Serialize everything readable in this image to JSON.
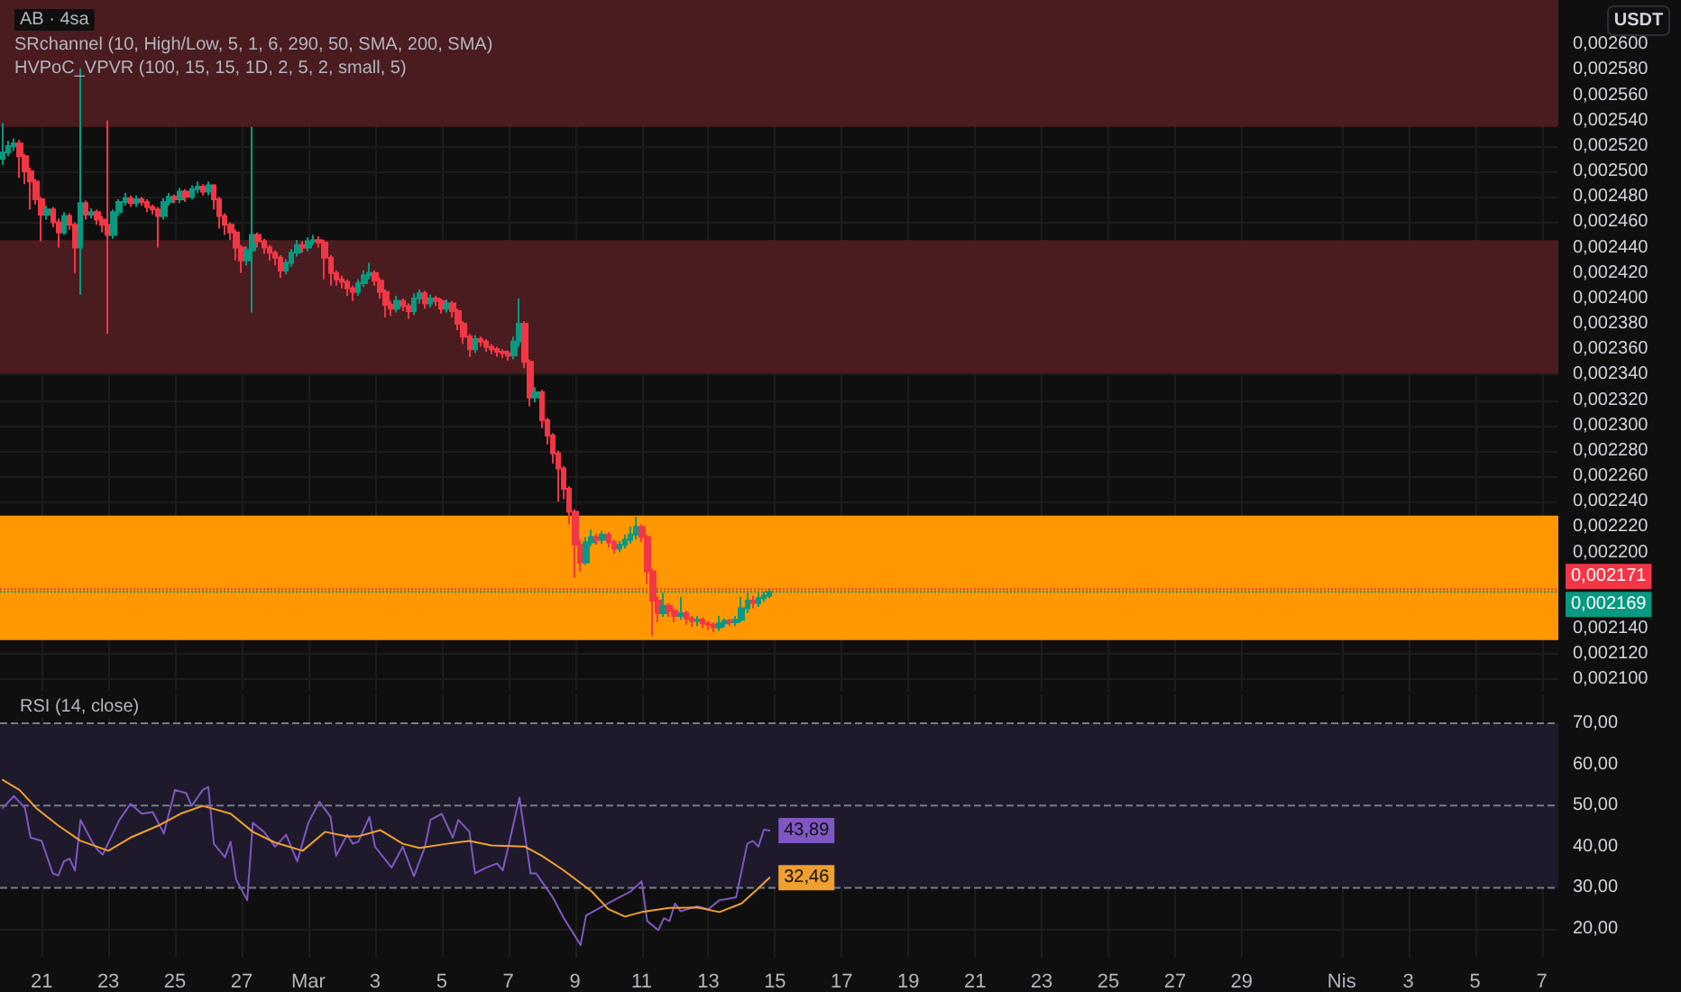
{
  "chart_data": [
    {
      "type": "candlestick",
      "title": "AB · 4sa",
      "ylabel": "USDT",
      "annotations": [
        "SRchannel (10, High/Low, 5, 1, 6, 290, 50, SMA, 200, SMA)",
        "HVPoC_VPVR (100, 15, 15, 1D, 2, 5, 2, small, 5)"
      ],
      "x": [
        "--02-19T20:00",
        "--02-20T00:00",
        "--02-20T04:00",
        "--02-20T08:00",
        "--02-20T12:00",
        "--02-20T16:00",
        "--02-20T20:00",
        "--02-21T00:00",
        "--02-21T04:00",
        "--02-21T08:00",
        "--02-21T12:00",
        "--02-21T16:00",
        "--02-21T20:00",
        "--02-22T00:00",
        "--02-22T04:00",
        "--02-22T08:00",
        "--02-22T12:00",
        "--02-22T16:00",
        "--02-22T20:00",
        "--02-23T00:00",
        "--02-23T04:00",
        "--02-23T08:00",
        "--02-23T12:00",
        "--02-23T16:00",
        "--02-23T20:00",
        "--02-24T00:00",
        "--02-24T04:00",
        "--02-24T08:00",
        "--02-24T12:00",
        "--02-24T16:00",
        "--02-24T20:00",
        "--02-25T00:00",
        "--02-25T04:00",
        "--02-25T08:00",
        "--02-25T12:00",
        "--02-25T16:00",
        "--02-25T20:00",
        "--02-26T00:00",
        "--02-26T04:00",
        "--02-26T08:00",
        "--02-26T12:00",
        "--02-26T16:00",
        "--02-26T20:00",
        "--02-27T00:00",
        "--02-27T04:00",
        "--02-27T08:00",
        "--02-27T12:00",
        "--02-27T16:00",
        "--02-27T20:00",
        "--02-28T00:00",
        "--02-28T04:00",
        "--02-28T08:00",
        "--02-28T12:00",
        "--02-28T16:00",
        "--02-28T20:00",
        "--03-01T00:00",
        "--03-01T04:00",
        "--03-01T08:00",
        "--03-01T12:00",
        "--03-01T16:00",
        "--03-01T20:00",
        "--03-02T00:00",
        "--03-02T04:00",
        "--03-02T08:00",
        "--03-02T12:00",
        "--03-02T16:00",
        "--03-02T20:00",
        "--03-03T00:00",
        "--03-03T04:00",
        "--03-03T08:00",
        "--03-03T12:00",
        "--03-03T16:00",
        "--03-03T20:00",
        "--03-04T00:00",
        "--03-04T04:00",
        "--03-04T08:00",
        "--03-04T12:00",
        "--03-04T16:00",
        "--03-04T20:00",
        "--03-05T00:00",
        "--03-05T04:00",
        "--03-05T08:00",
        "--03-05T12:00",
        "--03-05T16:00",
        "--03-05T20:00",
        "--03-06T00:00",
        "--03-06T04:00",
        "--03-06T08:00",
        "--03-06T12:00",
        "--03-06T16:00",
        "--03-06T20:00",
        "--03-07T00:00",
        "--03-07T04:00",
        "--03-07T08:00",
        "--03-07T12:00",
        "--03-07T16:00",
        "--03-07T20:00",
        "--03-08T00:00",
        "--03-08T04:00",
        "--03-08T08:00",
        "--03-08T12:00",
        "--03-08T16:00",
        "--03-08T20:00",
        "--03-09T00:00",
        "--03-09T04:00",
        "--03-09T08:00",
        "--03-09T12:00",
        "--03-09T16:00",
        "--03-09T20:00",
        "--03-10T00:00",
        "--03-10T04:00",
        "--03-10T08:00",
        "--03-10T12:00",
        "--03-10T16:00",
        "--03-10T20:00",
        "--03-11T00:00",
        "--03-11T04:00",
        "--03-11T08:00",
        "--03-11T12:00",
        "--03-11T16:00",
        "--03-11T20:00",
        "--03-12T00:00",
        "--03-12T04:00",
        "--03-12T08:00",
        "--03-12T12:00",
        "--03-12T16:00",
        "--03-12T20:00",
        "--03-13T00:00",
        "--03-13T04:00",
        "--03-13T08:00",
        "--03-13T12:00",
        "--03-13T16:00",
        "--03-13T20:00",
        "--03-14T00:00",
        "--03-14T04:00",
        "--03-14T08:00",
        "--03-14T12:00",
        "--03-14T16:00",
        "--03-14T20:00"
      ],
      "ohlc": [
        [
          0.00251,
          0.002538,
          0.002505,
          0.002515
        ],
        [
          0.002515,
          0.002524,
          0.002512,
          0.00252
        ],
        [
          0.00252,
          0.002526,
          0.002516,
          0.002522
        ],
        [
          0.002522,
          0.002525,
          0.002495,
          0.002512
        ],
        [
          0.002512,
          0.002514,
          0.00249,
          0.0025
        ],
        [
          0.0025,
          0.002503,
          0.00247,
          0.002492
        ],
        [
          0.002492,
          0.002494,
          0.002474,
          0.002478
        ],
        [
          0.002478,
          0.00248,
          0.002445,
          0.002466
        ],
        [
          0.002466,
          0.002473,
          0.002462,
          0.00247
        ],
        [
          0.00247,
          0.002472,
          0.002456,
          0.00246
        ],
        [
          0.00246,
          0.002463,
          0.00244,
          0.002452
        ],
        [
          0.002452,
          0.002468,
          0.00245,
          0.002465
        ],
        [
          0.002465,
          0.002467,
          0.002454,
          0.002458
        ],
        [
          0.002458,
          0.00246,
          0.00242,
          0.00244
        ],
        [
          0.00244,
          0.002581,
          0.002403,
          0.002475
        ],
        [
          0.002475,
          0.002477,
          0.002462,
          0.002466
        ],
        [
          0.002466,
          0.002471,
          0.002463,
          0.002468
        ],
        [
          0.002468,
          0.00247,
          0.002458,
          0.002462
        ],
        [
          0.002462,
          0.002465,
          0.002452,
          0.002458
        ],
        [
          0.002458,
          0.00254,
          0.002372,
          0.00245
        ],
        [
          0.00245,
          0.00247,
          0.002447,
          0.002468
        ],
        [
          0.002468,
          0.002478,
          0.002465,
          0.002476
        ],
        [
          0.002476,
          0.002483,
          0.002473,
          0.002479
        ],
        [
          0.002479,
          0.002481,
          0.002472,
          0.002475
        ],
        [
          0.002475,
          0.002481,
          0.002472,
          0.002478
        ],
        [
          0.002478,
          0.00248,
          0.002473,
          0.002476
        ],
        [
          0.002476,
          0.002478,
          0.002468,
          0.002472
        ],
        [
          0.002472,
          0.002474,
          0.002466,
          0.00247
        ],
        [
          0.00247,
          0.002472,
          0.00244,
          0.002465
        ],
        [
          0.002465,
          0.002479,
          0.002462,
          0.002476
        ],
        [
          0.002476,
          0.002483,
          0.002473,
          0.00248
        ],
        [
          0.00248,
          0.002482,
          0.002475,
          0.002478
        ],
        [
          0.002478,
          0.002487,
          0.002475,
          0.002484
        ],
        [
          0.002484,
          0.002486,
          0.002476,
          0.00248
        ],
        [
          0.00248,
          0.002489,
          0.002478,
          0.002486
        ],
        [
          0.002486,
          0.002492,
          0.002483,
          0.002488
        ],
        [
          0.002488,
          0.00249,
          0.002481,
          0.002484
        ],
        [
          0.002484,
          0.002492,
          0.002481,
          0.002489
        ],
        [
          0.002489,
          0.00249,
          0.00247,
          0.002478
        ],
        [
          0.002478,
          0.00248,
          0.002455,
          0.002465
        ],
        [
          0.002465,
          0.002467,
          0.00245,
          0.002458
        ],
        [
          0.002458,
          0.00246,
          0.002446,
          0.002452
        ],
        [
          0.002452,
          0.002454,
          0.00243,
          0.00244
        ],
        [
          0.00244,
          0.002442,
          0.00242,
          0.00243
        ],
        [
          0.00243,
          0.002441,
          0.002426,
          0.002438
        ],
        [
          0.002438,
          0.002535,
          0.002389,
          0.00245
        ],
        [
          0.00245,
          0.002452,
          0.00244,
          0.002445
        ],
        [
          0.002445,
          0.002447,
          0.002435,
          0.00244
        ],
        [
          0.00244,
          0.002442,
          0.00243,
          0.002436
        ],
        [
          0.002436,
          0.002438,
          0.002426,
          0.002432
        ],
        [
          0.002432,
          0.002434,
          0.002416,
          0.002422
        ],
        [
          0.002422,
          0.002431,
          0.002419,
          0.002428
        ],
        [
          0.002428,
          0.002439,
          0.002425,
          0.002436
        ],
        [
          0.002436,
          0.002446,
          0.002433,
          0.002442
        ],
        [
          0.002442,
          0.002445,
          0.002436,
          0.00244
        ],
        [
          0.00244,
          0.002448,
          0.002437,
          0.002445
        ],
        [
          0.002445,
          0.00245,
          0.002442,
          0.002446
        ],
        [
          0.002446,
          0.002449,
          0.00244,
          0.002444
        ],
        [
          0.002444,
          0.002446,
          0.002415,
          0.002432
        ],
        [
          0.002432,
          0.002434,
          0.00241,
          0.00242
        ],
        [
          0.00242,
          0.002422,
          0.00241,
          0.002415
        ],
        [
          0.002415,
          0.002418,
          0.002408,
          0.002413
        ],
        [
          0.002413,
          0.002415,
          0.002402,
          0.002408
        ],
        [
          0.002408,
          0.00241,
          0.002398,
          0.002405
        ],
        [
          0.002405,
          0.002415,
          0.002402,
          0.002412
        ],
        [
          0.002412,
          0.002422,
          0.002409,
          0.002418
        ],
        [
          0.002418,
          0.002428,
          0.002415,
          0.00242
        ],
        [
          0.00242,
          0.002422,
          0.00241,
          0.002414
        ],
        [
          0.002414,
          0.002416,
          0.0024,
          0.002405
        ],
        [
          0.002405,
          0.002407,
          0.002385,
          0.002395
        ],
        [
          0.002395,
          0.002398,
          0.002386,
          0.002392
        ],
        [
          0.002392,
          0.002402,
          0.002389,
          0.002398
        ],
        [
          0.002398,
          0.0024,
          0.00239,
          0.002394
        ],
        [
          0.002394,
          0.002396,
          0.002384,
          0.00239
        ],
        [
          0.00239,
          0.002404,
          0.002387,
          0.0024
        ],
        [
          0.0024,
          0.002407,
          0.002396,
          0.002404
        ],
        [
          0.002404,
          0.002406,
          0.002392,
          0.002396
        ],
        [
          0.002396,
          0.002403,
          0.002393,
          0.0024
        ],
        [
          0.0024,
          0.002402,
          0.002394,
          0.002398
        ],
        [
          0.002398,
          0.0024,
          0.002388,
          0.002392
        ],
        [
          0.002392,
          0.002399,
          0.002389,
          0.002396
        ],
        [
          0.002396,
          0.002398,
          0.002385,
          0.00239
        ],
        [
          0.00239,
          0.002392,
          0.002375,
          0.00238
        ],
        [
          0.00238,
          0.002382,
          0.002364,
          0.00237
        ],
        [
          0.00237,
          0.002372,
          0.002354,
          0.00236
        ],
        [
          0.00236,
          0.002371,
          0.002357,
          0.002368
        ],
        [
          0.002368,
          0.00237,
          0.002362,
          0.002366
        ],
        [
          0.002366,
          0.002368,
          0.002358,
          0.002362
        ],
        [
          0.002362,
          0.002364,
          0.002356,
          0.00236
        ],
        [
          0.00236,
          0.002362,
          0.002354,
          0.002358
        ],
        [
          0.002358,
          0.00236,
          0.002353,
          0.002357
        ],
        [
          0.002357,
          0.002359,
          0.002351,
          0.002355
        ],
        [
          0.002355,
          0.00237,
          0.002352,
          0.002366
        ],
        [
          0.002366,
          0.0024,
          0.002362,
          0.00238
        ],
        [
          0.00238,
          0.002382,
          0.002345,
          0.00235
        ],
        [
          0.00235,
          0.002352,
          0.002315,
          0.002322
        ],
        [
          0.002322,
          0.00233,
          0.002318,
          0.002326
        ],
        [
          0.002326,
          0.002328,
          0.002298,
          0.002304
        ],
        [
          0.002304,
          0.002306,
          0.002285,
          0.002292
        ],
        [
          0.002292,
          0.002294,
          0.00227,
          0.002278
        ],
        [
          0.002278,
          0.00228,
          0.00224,
          0.002266
        ],
        [
          0.002266,
          0.002268,
          0.002242,
          0.00225
        ],
        [
          0.00225,
          0.002252,
          0.002222,
          0.002232
        ],
        [
          0.002232,
          0.002234,
          0.00218,
          0.002206
        ],
        [
          0.002206,
          0.00221,
          0.002185,
          0.002192
        ],
        [
          0.002192,
          0.002212,
          0.00219,
          0.002208
        ],
        [
          0.002208,
          0.002218,
          0.002205,
          0.002212
        ],
        [
          0.002212,
          0.002215,
          0.002206,
          0.00221
        ],
        [
          0.00221,
          0.002217,
          0.002207,
          0.002214
        ],
        [
          0.002214,
          0.002216,
          0.002204,
          0.002208
        ],
        [
          0.002208,
          0.00221,
          0.002199,
          0.002203
        ],
        [
          0.002203,
          0.002209,
          0.0022,
          0.002206
        ],
        [
          0.002206,
          0.002214,
          0.002203,
          0.00221
        ],
        [
          0.00221,
          0.00222,
          0.002207,
          0.002214
        ],
        [
          0.002214,
          0.002228,
          0.00221,
          0.00222
        ],
        [
          0.00222,
          0.002222,
          0.002208,
          0.002212
        ],
        [
          0.002212,
          0.002214,
          0.002175,
          0.002185
        ],
        [
          0.002185,
          0.002187,
          0.002134,
          0.002162
        ],
        [
          0.002162,
          0.002165,
          0.002145,
          0.002152
        ],
        [
          0.002152,
          0.002168,
          0.002149,
          0.002158
        ],
        [
          0.002158,
          0.00216,
          0.002149,
          0.002154
        ],
        [
          0.002154,
          0.002156,
          0.002145,
          0.00215
        ],
        [
          0.00215,
          0.002165,
          0.002147,
          0.002152
        ],
        [
          0.002152,
          0.002154,
          0.002143,
          0.002148
        ],
        [
          0.002148,
          0.00215,
          0.002141,
          0.002146
        ],
        [
          0.002146,
          0.00215,
          0.002142,
          0.002147
        ],
        [
          0.002147,
          0.002149,
          0.00214,
          0.002144
        ],
        [
          0.002144,
          0.002146,
          0.002139,
          0.002143
        ],
        [
          0.002143,
          0.002145,
          0.002137,
          0.002141
        ],
        [
          0.002141,
          0.00215,
          0.002138,
          0.002144
        ],
        [
          0.002144,
          0.002148,
          0.002141,
          0.002146
        ],
        [
          0.002146,
          0.002148,
          0.002142,
          0.002145
        ],
        [
          0.002145,
          0.00215,
          0.002142,
          0.002147
        ],
        [
          0.002147,
          0.002165,
          0.002145,
          0.002156
        ],
        [
          0.002156,
          0.002168,
          0.002152,
          0.002162
        ],
        [
          0.002162,
          0.002166,
          0.002156,
          0.00216
        ],
        [
          0.00216,
          0.002168,
          0.002157,
          0.002164
        ],
        [
          0.002164,
          0.002169,
          0.002161,
          0.002166
        ],
        [
          0.002166,
          0.002171,
          0.002164,
          0.002169
        ]
      ],
      "xlim": [
        "--02-19T18:00",
        "--04-07T12:00"
      ],
      "xticks": [
        {
          "value": "--02-21",
          "label": null
        },
        {
          "value": "--02-23",
          "label": null
        },
        {
          "value": "--02-25",
          "label": null
        },
        {
          "value": "--02-27",
          "label": null
        },
        {
          "value": "--03-01",
          "label": null
        },
        {
          "value": "--03-03",
          "label": null
        },
        {
          "value": "--03-05",
          "label": null
        },
        {
          "value": "--03-07",
          "label": null
        },
        {
          "value": "--03-09",
          "label": null
        },
        {
          "value": "--03-11",
          "label": null
        },
        {
          "value": "--03-13",
          "label": null
        },
        {
          "value": "--03-15",
          "label": null
        },
        {
          "value": "--03-17",
          "label": null
        },
        {
          "value": "--03-19",
          "label": null
        },
        {
          "value": "--03-21",
          "label": null
        },
        {
          "value": "--03-23",
          "label": null
        },
        {
          "value": "--03-25",
          "label": null
        },
        {
          "value": "--03-27",
          "label": null
        },
        {
          "value": "--03-29",
          "label": null
        },
        {
          "value": "--04-01",
          "label": null
        },
        {
          "value": "--04-03",
          "label": null
        },
        {
          "value": "--04-05",
          "label": null
        },
        {
          "value": "--04-07",
          "label": null
        }
      ],
      "ylim": [
        0.002091,
        0.002635
      ],
      "yticks": [
        {
          "value": 0.0021,
          "label": "0,002100"
        },
        {
          "value": 0.00212,
          "label": "0,002120"
        },
        {
          "value": 0.00214,
          "label": "0,002140"
        },
        {
          "value": 0.0022,
          "label": "0,002200"
        },
        {
          "value": 0.00222,
          "label": "0,002220"
        },
        {
          "value": 0.00224,
          "label": "0,002240"
        },
        {
          "value": 0.00226,
          "label": "0,002260"
        },
        {
          "value": 0.00228,
          "label": "0,002280"
        },
        {
          "value": 0.0023,
          "label": "0,002300"
        },
        {
          "value": 0.00232,
          "label": "0,002320"
        },
        {
          "value": 0.00234,
          "label": "0,002340"
        },
        {
          "value": 0.00236,
          "label": "0,002360"
        },
        {
          "value": 0.00238,
          "label": "0,002380"
        },
        {
          "value": 0.0024,
          "label": "0,002400"
        },
        {
          "value": 0.00242,
          "label": "0,002420"
        },
        {
          "value": 0.00244,
          "label": "0,002440"
        },
        {
          "value": 0.00246,
          "label": "0,002460"
        },
        {
          "value": 0.00248,
          "label": "0,002480"
        },
        {
          "value": 0.0025,
          "label": "0,002500"
        },
        {
          "value": 0.00252,
          "label": "0,002520"
        },
        {
          "value": 0.00254,
          "label": "0,002540"
        },
        {
          "value": 0.00256,
          "label": "0,002560"
        },
        {
          "value": 0.00258,
          "label": "0,002580"
        },
        {
          "value": 0.0026,
          "label": "0,002600"
        }
      ],
      "tick_labels": "y",
      "grid": true,
      "bands": [
        {
          "axis": "y",
          "from": 0.002535,
          "to": 0.002635,
          "color": "#4a1c20"
        },
        {
          "axis": "y",
          "from": 0.002341,
          "to": 0.002446,
          "color": "#4a1c20"
        },
        {
          "axis": "y",
          "from": 0.002131,
          "to": 0.002229,
          "color": "#ff9800"
        }
      ],
      "ref_lines": [
        {
          "axis": "y",
          "value": 0.002171,
          "label": "0,002171",
          "color": "#f23645",
          "line_style": "dotted"
        },
        {
          "axis": "y",
          "value": 0.002169,
          "label": "0,002169",
          "color": "#089981",
          "line_style": "dotted"
        }
      ]
    },
    {
      "type": "line",
      "title": "RSI (14, close)",
      "series": [
        {
          "color": "#7e57c2",
          "x": [
            "--02-19T20:00",
            "--02-20T04:00",
            "--02-20T12:00",
            "--02-20T16:00",
            "--02-21T00:00",
            "--02-21T08:00",
            "--02-21T12:00",
            "--02-21T16:00",
            "--02-21T20:00",
            "--02-22T00:00",
            "--02-22T04:00",
            "--02-22T12:00",
            "--02-22T16:00",
            "--02-22T20:00",
            "--02-23T08:00",
            "--02-23T16:00",
            "--02-24T00:00",
            "--02-24T08:00",
            "--02-24T16:00",
            "--02-25T00:00",
            "--02-25T08:00",
            "--02-25T12:00",
            "--02-25T20:00",
            "--02-26T00:00",
            "--02-26T04:00",
            "--02-26T12:00",
            "--02-26T16:00",
            "--02-26T20:00",
            "--02-27T04:00",
            "--02-27T08:00",
            "--02-27T16:00",
            "--02-28T00:00",
            "--02-28T08:00",
            "--02-28T16:00",
            "--03-01T00:00",
            "--03-01T08:00",
            "--03-01T16:00",
            "--03-01T20:00",
            "--03-02T04:00",
            "--03-02T08:00",
            "--03-02T12:00",
            "--03-02T20:00",
            "--03-03T00:00",
            "--03-03T12:00",
            "--03-03T20:00",
            "--03-04T04:00",
            "--03-04T12:00",
            "--03-04T16:00",
            "--03-05T00:00",
            "--03-05T08:00",
            "--03-05T12:00",
            "--03-05T20:00",
            "--03-06T00:00",
            "--03-06T08:00",
            "--03-06T16:00",
            "--03-06T20:00",
            "--03-07T00:00",
            "--03-07T08:00",
            "--03-07T16:00",
            "--03-07T20:00",
            "--03-08T08:00",
            "--03-08T16:00",
            "--03-09T04:00",
            "--03-09T08:00",
            "--03-09T20:00",
            "--03-10T08:00",
            "--03-10T16:00",
            "--03-11T00:00",
            "--03-11T04:00",
            "--03-11T12:00",
            "--03-11T16:00",
            "--03-11T20:00",
            "--03-12T00:00",
            "--03-12T04:00",
            "--03-12T16:00",
            "--03-13T00:00",
            "--03-13T08:00",
            "--03-13T12:00",
            "--03-13T20:00",
            "--03-14T04:00",
            "--03-14T08:00",
            "--03-14T12:00",
            "--03-14T16:00",
            "--03-14T20:00"
          ],
          "values": [
            49.4,
            52.3,
            49.4,
            42.2,
            41.4,
            33.5,
            33.0,
            36.4,
            37.1,
            34.2,
            46.5,
            41.4,
            39.3,
            38.1,
            46.5,
            50.4,
            48.0,
            48.4,
            43.2,
            53.8,
            53.0,
            49.9,
            53.8,
            54.5,
            40.7,
            37.4,
            41.2,
            32.0,
            27.0,
            45.8,
            43.6,
            40.0,
            42.9,
            36.4,
            45.8,
            50.9,
            47.2,
            37.8,
            42.9,
            40.7,
            41.2,
            47.2,
            40.0,
            34.9,
            40.0,
            32.8,
            40.0,
            46.5,
            48.0,
            42.2,
            46.5,
            43.6,
            33.5,
            34.9,
            35.9,
            34.2,
            40.0,
            51.9,
            33.5,
            33.5,
            27.7,
            22.6,
            16.1,
            23.3,
            25.5,
            27.7,
            29.1,
            31.6,
            21.9,
            19.7,
            22.6,
            21.9,
            26.2,
            24.3,
            25.5,
            24.8,
            27.0,
            27.2,
            27.7,
            40.7,
            41.4,
            40.0,
            44.1,
            43.89
          ],
          "value_labels": [
            null,
            null,
            null,
            null,
            null,
            null,
            null,
            null,
            null,
            null,
            null,
            null,
            null,
            null,
            null,
            null,
            null,
            null,
            null,
            null,
            null,
            null,
            null,
            null,
            null,
            null,
            null,
            null,
            null,
            null,
            null,
            null,
            null,
            null,
            null,
            null,
            null,
            null,
            null,
            null,
            null,
            null,
            null,
            null,
            null,
            null,
            null,
            null,
            null,
            null,
            null,
            null,
            null,
            null,
            null,
            null,
            null,
            null,
            null,
            null,
            null,
            null,
            null,
            null,
            null,
            null,
            null,
            null,
            null,
            null,
            null,
            null,
            null,
            null,
            null,
            null,
            null,
            null,
            null,
            null,
            null,
            null,
            null,
            "43,89"
          ]
        },
        {
          "color": "#f0a030",
          "x": [
            "--02-19T20:00",
            "--02-20T08:00",
            "--02-20T20:00",
            "--02-21T12:00",
            "--02-22T04:00",
            "--02-23T00:00",
            "--02-23T16:00",
            "--02-24T12:00",
            "--02-25T04:00",
            "--02-25T20:00",
            "--02-26T16:00",
            "--02-27T08:00",
            "--02-28T00:00",
            "--02-28T20:00",
            "--03-01T12:00",
            "--03-02T04:00",
            "--03-02T12:00",
            "--03-03T04:00",
            "--03-03T20:00",
            "--03-04T08:00",
            "--03-05T04:00",
            "--03-05T20:00",
            "--03-06T12:00",
            "--03-07T12:00",
            "--03-08T00:00",
            "--03-08T16:00",
            "--03-09T12:00",
            "--03-10T00:00",
            "--03-10T12:00",
            "--03-11T00:00",
            "--03-11T20:00",
            "--03-12T16:00",
            "--03-13T08:00",
            "--03-14T00:00",
            "--03-14T12:00",
            "--03-14T20:00"
          ],
          "values": [
            56.2,
            53.8,
            49.4,
            45.1,
            41.4,
            39.0,
            42.2,
            45.1,
            48.0,
            49.9,
            48.0,
            43.6,
            41.0,
            39.0,
            43.6,
            42.5,
            42.5,
            44.0,
            40.7,
            39.7,
            40.7,
            41.4,
            40.3,
            40.0,
            37.8,
            34.2,
            29.1,
            24.8,
            23.0,
            24.1,
            25.1,
            25.2,
            24.1,
            26.2,
            29.9,
            32.46
          ],
          "value_labels": [
            null,
            null,
            null,
            null,
            null,
            null,
            null,
            null,
            null,
            null,
            null,
            null,
            null,
            null,
            null,
            null,
            null,
            null,
            null,
            null,
            null,
            null,
            null,
            null,
            null,
            null,
            null,
            null,
            null,
            null,
            null,
            null,
            null,
            null,
            null,
            "32,46"
          ]
        }
      ],
      "xlim": [
        "--02-19T18:00",
        "--04-07T12:00"
      ],
      "xticks": [
        {
          "value": "--02-21",
          "label": "21"
        },
        {
          "value": "--02-23",
          "label": "23"
        },
        {
          "value": "--02-25",
          "label": "25"
        },
        {
          "value": "--02-27",
          "label": "27"
        },
        {
          "value": "--03-01",
          "label": "Mar"
        },
        {
          "value": "--03-03",
          "label": "3"
        },
        {
          "value": "--03-05",
          "label": "5"
        },
        {
          "value": "--03-07",
          "label": "7"
        },
        {
          "value": "--03-09",
          "label": "9"
        },
        {
          "value": "--03-11",
          "label": "11"
        },
        {
          "value": "--03-13",
          "label": "13"
        },
        {
          "value": "--03-15",
          "label": "15"
        },
        {
          "value": "--03-17",
          "label": "17"
        },
        {
          "value": "--03-19",
          "label": "19"
        },
        {
          "value": "--03-21",
          "label": "21"
        },
        {
          "value": "--03-23",
          "label": "23"
        },
        {
          "value": "--03-25",
          "label": "25"
        },
        {
          "value": "--03-27",
          "label": "27"
        },
        {
          "value": "--03-29",
          "label": "29"
        },
        {
          "value": "--04-01",
          "label": "Nis"
        },
        {
          "value": "--04-03",
          "label": "3"
        },
        {
          "value": "--04-05",
          "label": "5"
        },
        {
          "value": "--04-07",
          "label": "7"
        }
      ],
      "ylim": [
        13,
        77
      ],
      "yticks": [
        {
          "value": 20,
          "label": "20,00"
        },
        {
          "value": 30,
          "label": "30,00"
        },
        {
          "value": 40,
          "label": "40,00"
        },
        {
          "value": 50,
          "label": "50,00"
        },
        {
          "value": 60,
          "label": "60,00"
        },
        {
          "value": 70,
          "label": "70,00"
        }
      ],
      "grid": true,
      "bands": [
        {
          "axis": "y",
          "from": 30,
          "to": 70,
          "color": "#1e1a2b"
        }
      ],
      "ref_lines": [
        {
          "axis": "y",
          "value": 70,
          "color": "#787b86",
          "line_style": "dashed"
        },
        {
          "axis": "y",
          "value": 50,
          "color": "#787b86",
          "line_style": "dashed"
        },
        {
          "axis": "y",
          "value": 30,
          "color": "#787b86",
          "line_style": "dashed"
        }
      ]
    }
  ]
}
